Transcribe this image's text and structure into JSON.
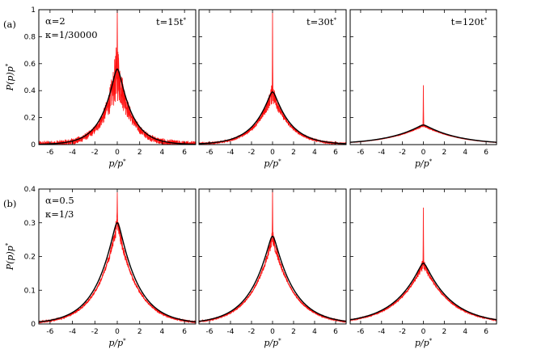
{
  "chart_data": {
    "type": "line",
    "x_range": [
      -7,
      7
    ],
    "x_ticks": [
      -6,
      -4,
      -2,
      0,
      2,
      4,
      6
    ],
    "xlabel": "p/p*",
    "ylabel": "P(p)p*",
    "grid": false,
    "rows": [
      {
        "label": "(a)",
        "y_range": [
          0,
          1
        ],
        "y_ticks": [
          0,
          0.2,
          0.4,
          0.6,
          0.8,
          1
        ],
        "y_tick_labels": [
          "0",
          "0.2",
          "0.4",
          "0.6",
          "0.8",
          "1"
        ],
        "params": [
          "α=2",
          "κ=1/30000"
        ],
        "panels": [
          {
            "time": "t=15t*",
            "theory_peak": 0.56,
            "theory_width": 1.25,
            "noise": 0.1,
            "spike": 1.0
          },
          {
            "time": "t=30t*",
            "theory_peak": 0.39,
            "theory_width": 1.65,
            "noise": 0.035,
            "spike": 0.98
          },
          {
            "time": "t=120t*",
            "theory_peak": 0.145,
            "theory_width": 3.2,
            "noise": 0.006,
            "spike": 0.44
          }
        ]
      },
      {
        "label": "(b)",
        "y_range": [
          0,
          0.4
        ],
        "y_ticks": [
          0,
          0.1,
          0.2,
          0.3,
          0.4
        ],
        "y_tick_labels": [
          "0",
          "0.1",
          "0.2",
          "0.3",
          "0.4"
        ],
        "params": [
          "α=0.5",
          "κ=1/3"
        ],
        "panels": [
          {
            "time": "",
            "theory_peak": 0.3,
            "theory_width": 1.75,
            "noise": 0.012,
            "spike": 0.39
          },
          {
            "time": "",
            "theory_peak": 0.26,
            "theory_width": 1.95,
            "noise": 0.01,
            "spike": 0.4
          },
          {
            "time": "",
            "theory_peak": 0.18,
            "theory_width": 2.55,
            "noise": 0.008,
            "spike": 0.345
          }
        ]
      }
    ],
    "series": [
      {
        "color": "#ff0000",
        "style": "simulation (noisy)"
      },
      {
        "color": "#000000",
        "style": "theory (smooth)"
      }
    ]
  }
}
